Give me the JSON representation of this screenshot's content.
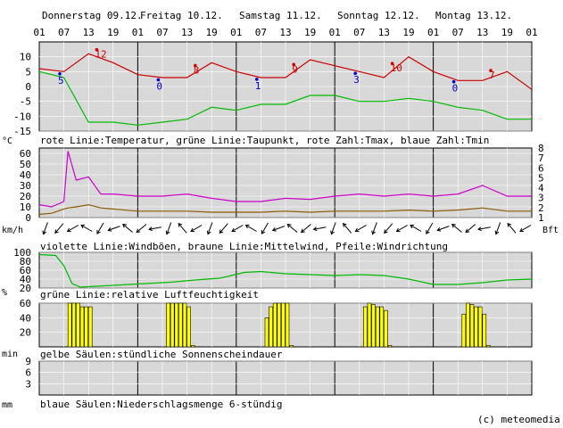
{
  "days": [
    "Donnerstag 09.12.",
    "Freitag 10.12.",
    "Samstag 11.12.",
    "Sonntag 12.12.",
    "Montag 13.12."
  ],
  "hour_ticks": [
    "01",
    "07",
    "13",
    "19",
    "01",
    "07",
    "13",
    "19",
    "01",
    "07",
    "13",
    "19",
    "01",
    "07",
    "13",
    "19",
    "01",
    "07",
    "13",
    "19",
    "01"
  ],
  "copyright": "(c) meteomedia",
  "colors": {
    "panel": "#d8d8d8",
    "temp": "#cc0000",
    "dew": "#00bb00",
    "gust": "#cc00cc",
    "mean": "#8b5a00",
    "humid": "#00bb00",
    "sun": "#ffff00",
    "tmin": "#0000cc"
  },
  "chart_data": [
    {
      "type": "line",
      "unit": "°C",
      "caption": "rote Linie:Temperatur, grüne Linie:Taupunkt, rote Zahl:Tmax, blaue Zahl:Tmin",
      "ylim": [
        -15,
        15
      ],
      "yticks": [
        -15,
        -10,
        -5,
        0,
        5,
        10
      ],
      "x": [
        0,
        6,
        12,
        18,
        24,
        30,
        36,
        42,
        48,
        54,
        60,
        66,
        72,
        78,
        84,
        90,
        96,
        102,
        108,
        114,
        120
      ],
      "series": [
        {
          "key": "temp",
          "values": [
            6,
            5,
            11,
            8,
            4,
            3,
            3,
            8,
            5,
            3,
            3,
            9,
            7,
            5,
            3,
            10,
            5,
            2,
            2,
            5,
            -1
          ]
        },
        {
          "key": "dew",
          "values": [
            5,
            3,
            -12,
            -12,
            -13,
            -12,
            -11,
            -7,
            -8,
            -6,
            -6,
            -3,
            -3,
            -5,
            -5,
            -4,
            -5,
            -7,
            -8,
            -11,
            -11
          ]
        }
      ],
      "tmax": [
        {
          "hour": 14,
          "label": "12"
        },
        {
          "hour": 38,
          "label": "8"
        },
        {
          "hour": 62,
          "label": "9"
        },
        {
          "hour": 86,
          "label": "10"
        },
        {
          "hour": 110,
          "label": "7"
        }
      ],
      "tmin": [
        {
          "hour": 5,
          "label": "5"
        },
        {
          "hour": 29,
          "label": "0"
        },
        {
          "hour": 53,
          "label": "1"
        },
        {
          "hour": 77,
          "label": "3"
        },
        {
          "hour": 101,
          "label": "0"
        }
      ]
    },
    {
      "type": "line",
      "unit": "km/h",
      "unit_right": "Bft",
      "caption": "violette Linie:Windböen, braune Linie:Mittelwind, Pfeile:Windrichtung",
      "ylim": [
        0,
        65
      ],
      "yticks": [
        0,
        10,
        20,
        30,
        40,
        50,
        60
      ],
      "bft_ticks": [
        1,
        2,
        3,
        4,
        5,
        6,
        7,
        8
      ],
      "x": [
        0,
        3,
        6,
        7,
        9,
        12,
        15,
        18,
        24,
        30,
        36,
        42,
        48,
        54,
        60,
        66,
        72,
        78,
        84,
        90,
        96,
        102,
        108,
        114,
        120
      ],
      "series": [
        {
          "key": "gust",
          "values": [
            12,
            10,
            15,
            62,
            35,
            38,
            22,
            22,
            20,
            20,
            22,
            18,
            15,
            15,
            18,
            17,
            20,
            22,
            20,
            22,
            20,
            22,
            30,
            20,
            20
          ]
        },
        {
          "key": "mean",
          "values": [
            3,
            4,
            8,
            9,
            10,
            12,
            9,
            8,
            6,
            6,
            6,
            5,
            5,
            5,
            6,
            5,
            6,
            6,
            6,
            7,
            6,
            7,
            9,
            6,
            6
          ]
        }
      ]
    },
    {
      "type": "line",
      "unit": "%",
      "caption": "grüne Linie:relative Luftfeuchtigkeit",
      "ylim": [
        20,
        100
      ],
      "yticks": [
        20,
        40,
        60,
        80,
        100
      ],
      "x": [
        0,
        4,
        6,
        8,
        10,
        14,
        20,
        26,
        32,
        38,
        44,
        50,
        54,
        60,
        66,
        72,
        78,
        84,
        90,
        96,
        102,
        108,
        114,
        120
      ],
      "series": [
        {
          "key": "humid",
          "values": [
            95,
            93,
            70,
            30,
            22,
            24,
            27,
            30,
            33,
            38,
            42,
            55,
            57,
            52,
            50,
            48,
            50,
            48,
            40,
            28,
            28,
            32,
            38,
            40
          ]
        }
      ]
    },
    {
      "type": "bar",
      "unit": "min",
      "caption": "gelbe Säulen:stündliche Sonnenscheindauer",
      "ylim": [
        0,
        60
      ],
      "yticks": [
        20,
        40,
        60
      ],
      "bars": [
        {
          "hour": 8,
          "value": 60
        },
        {
          "hour": 9,
          "value": 60
        },
        {
          "hour": 10,
          "value": 60
        },
        {
          "hour": 11,
          "value": 55
        },
        {
          "hour": 12,
          "value": 55
        },
        {
          "hour": 13,
          "value": 55
        },
        {
          "hour": 32,
          "value": 60
        },
        {
          "hour": 33,
          "value": 60
        },
        {
          "hour": 34,
          "value": 60
        },
        {
          "hour": 35,
          "value": 60
        },
        {
          "hour": 36,
          "value": 60
        },
        {
          "hour": 37,
          "value": 55
        },
        {
          "hour": 38,
          "value": 2
        },
        {
          "hour": 56,
          "value": 40
        },
        {
          "hour": 57,
          "value": 55
        },
        {
          "hour": 58,
          "value": 60
        },
        {
          "hour": 59,
          "value": 60
        },
        {
          "hour": 60,
          "value": 60
        },
        {
          "hour": 61,
          "value": 60
        },
        {
          "hour": 62,
          "value": 2
        },
        {
          "hour": 80,
          "value": 55
        },
        {
          "hour": 81,
          "value": 60
        },
        {
          "hour": 82,
          "value": 58
        },
        {
          "hour": 83,
          "value": 55
        },
        {
          "hour": 84,
          "value": 55
        },
        {
          "hour": 85,
          "value": 50
        },
        {
          "hour": 86,
          "value": 2
        },
        {
          "hour": 104,
          "value": 45
        },
        {
          "hour": 105,
          "value": 60
        },
        {
          "hour": 106,
          "value": 58
        },
        {
          "hour": 107,
          "value": 55
        },
        {
          "hour": 108,
          "value": 55
        },
        {
          "hour": 109,
          "value": 45
        },
        {
          "hour": 110,
          "value": 2
        }
      ]
    },
    {
      "type": "bar",
      "unit": "mm",
      "caption": "blaue Säulen:Niederschlagsmenge 6-stündig",
      "ylim": [
        0,
        9
      ],
      "yticks": [
        3,
        6,
        9
      ],
      "bars": []
    }
  ]
}
